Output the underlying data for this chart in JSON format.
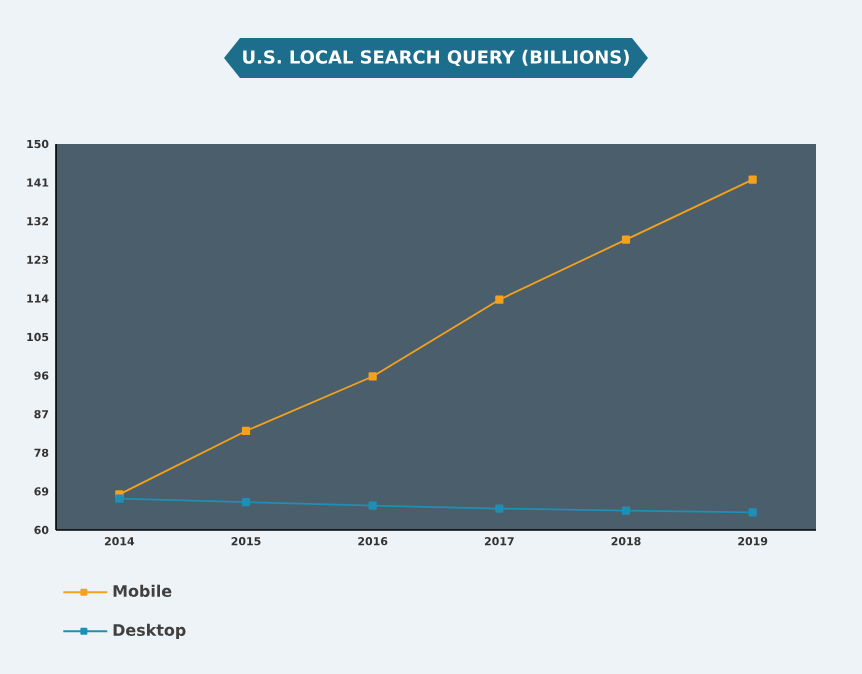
{
  "chart_data": {
    "type": "line",
    "title": "U.S. LOCAL SEARCH QUERY (BILLIONS)",
    "categories": [
      "2014",
      "2015",
      "2016",
      "2017",
      "2018",
      "2019"
    ],
    "series": [
      {
        "name": "Mobile",
        "color": "#f5a11c",
        "values": [
          68.3,
          83.1,
          95.8,
          113.7,
          127.7,
          141.7
        ]
      },
      {
        "name": "Desktop",
        "color": "#1e8fb5",
        "values": [
          67.3,
          66.5,
          65.7,
          65.0,
          64.5,
          64.1
        ]
      }
    ],
    "ylim": [
      60,
      150
    ],
    "yticks": [
      60,
      69,
      78,
      87,
      96,
      105,
      114,
      123,
      132,
      141,
      150
    ],
    "marker": "square",
    "grid": false,
    "legend": "bottom left"
  }
}
